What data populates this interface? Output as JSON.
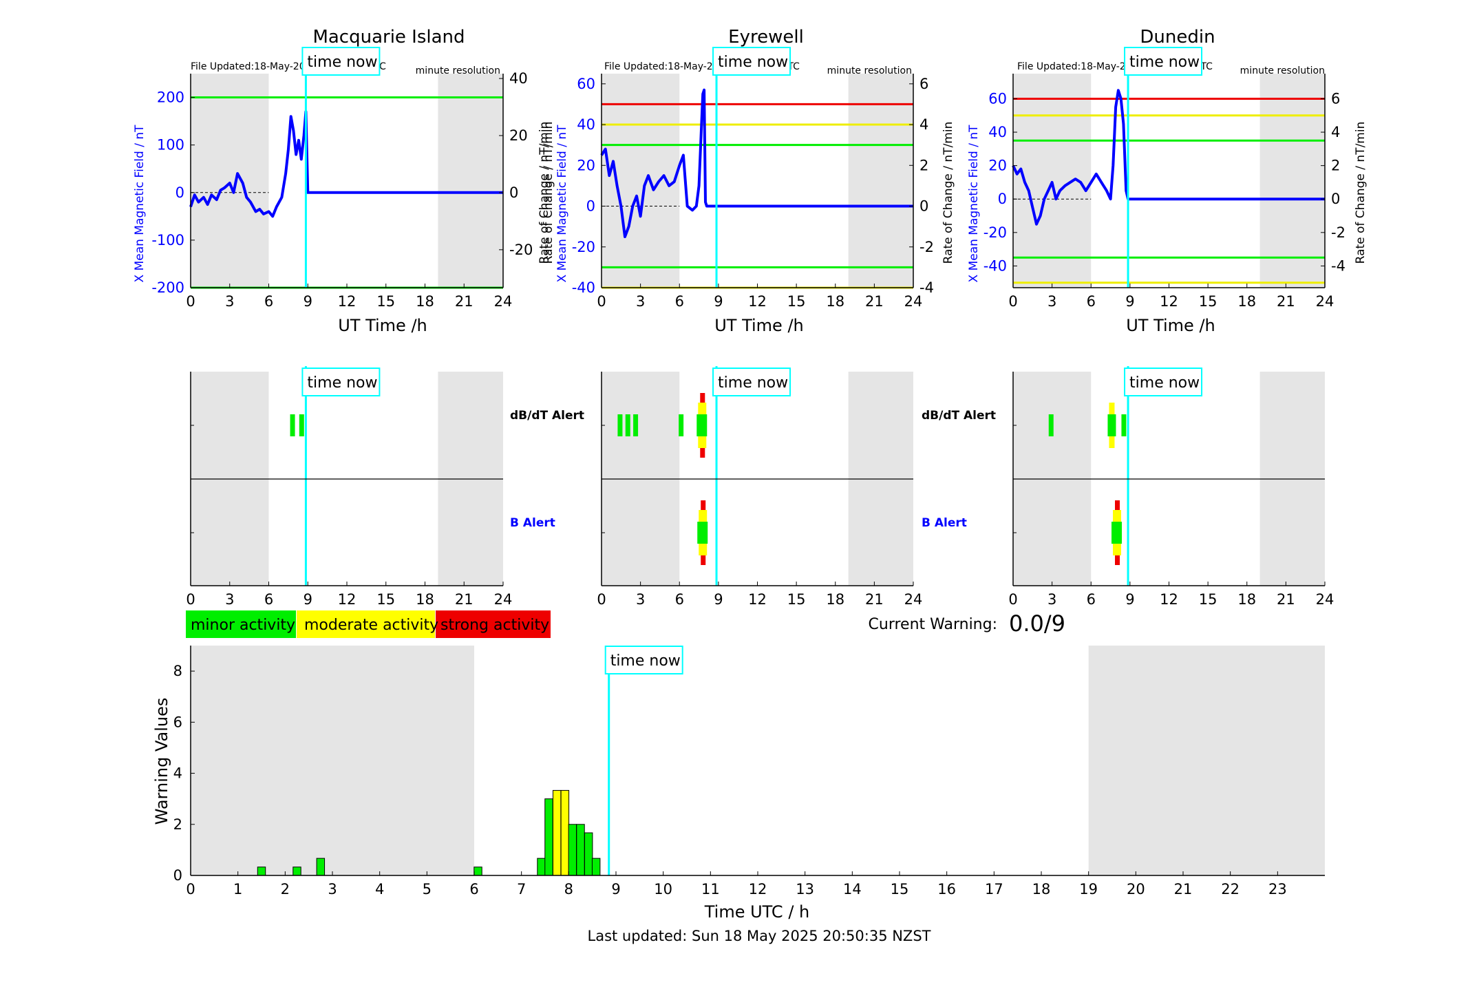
{
  "chart_data": [
    {
      "type": "line",
      "title": "Macquarie Island",
      "file_updated": "File Updated:18-May-2025 08:50:03 UTC",
      "resolution": "minute resolution",
      "xlabel": "UT Time /h",
      "ylabel_left": "X Mean Magnetic Field / nT",
      "ylabel_right": "Rate of Change / nT/min",
      "xlim": [
        0,
        24
      ],
      "ylim_left": [
        -200,
        250
      ],
      "ylim_right": [
        -33.3,
        41.7
      ],
      "xticks": [
        "0",
        "3",
        "6",
        "9",
        "12",
        "15",
        "18",
        "21",
        "24"
      ],
      "yticks_left": [
        "-200",
        "-100",
        "0",
        "100",
        "200"
      ],
      "yticks_right": [
        "-20",
        "0",
        "20",
        "40"
      ],
      "time_now": 8.85,
      "time_now_label": "time now",
      "shaded_hours": [
        [
          0,
          6
        ],
        [
          19,
          24
        ]
      ],
      "thresholds": [
        {
          "level": 200,
          "color": "#00ee00"
        },
        {
          "level": -200,
          "color": "#00ee00"
        }
      ],
      "series": [
        {
          "color": "#0000ff",
          "x": [
            0,
            0.3,
            0.6,
            1,
            1.3,
            1.6,
            2,
            2.3,
            2.6,
            3,
            3.3,
            3.6,
            4,
            4.3,
            4.6,
            5,
            5.3,
            5.6,
            6,
            6.3,
            6.6,
            7,
            7.3,
            7.5,
            7.7,
            7.9,
            8.1,
            8.3,
            8.5,
            8.7,
            8.85,
            9,
            12,
            15,
            18,
            21,
            24
          ],
          "y": [
            -30,
            -5,
            -20,
            -10,
            -25,
            -5,
            -15,
            5,
            10,
            20,
            0,
            40,
            20,
            -10,
            -20,
            -40,
            -35,
            -45,
            -40,
            -50,
            -30,
            -10,
            40,
            90,
            160,
            130,
            80,
            110,
            70,
            120,
            170,
            0,
            0,
            0,
            0,
            0,
            0
          ]
        }
      ]
    },
    {
      "type": "line",
      "title": "Eyrewell",
      "file_updated": "File Updated:18-May-2025 08:50:05 UTC",
      "resolution": "minute resolution",
      "xlabel": "UT Time /h",
      "ylabel_left": "X Mean Magnetic Field / nT",
      "ylabel_right": "Rate of Change / nT/min",
      "xlim": [
        0,
        24
      ],
      "ylim_left": [
        -40,
        65
      ],
      "ylim_right": [
        -4,
        6.5
      ],
      "xticks": [
        "0",
        "3",
        "6",
        "9",
        "12",
        "15",
        "18",
        "21",
        "24"
      ],
      "yticks_left": [
        "-40",
        "-20",
        "0",
        "20",
        "40",
        "60"
      ],
      "yticks_right": [
        "-4",
        "-2",
        "0",
        "2",
        "4",
        "6"
      ],
      "time_now": 8.85,
      "time_now_label": "time now",
      "shaded_hours": [
        [
          0,
          6
        ],
        [
          19,
          24
        ]
      ],
      "thresholds": [
        {
          "level": 50,
          "color": "#ee0000"
        },
        {
          "level": 40,
          "color": "#eeee00"
        },
        {
          "level": 30,
          "color": "#00ee00"
        },
        {
          "level": -30,
          "color": "#00ee00"
        },
        {
          "level": -40,
          "color": "#eeee00"
        }
      ],
      "series": [
        {
          "color": "#0000ff",
          "x": [
            0,
            0.3,
            0.6,
            0.9,
            1.2,
            1.5,
            1.8,
            2.1,
            2.4,
            2.7,
            3,
            3.3,
            3.6,
            4,
            4.4,
            4.8,
            5.2,
            5.6,
            6,
            6.3,
            6.6,
            7,
            7.3,
            7.5,
            7.7,
            7.8,
            7.9,
            8,
            8.1,
            12,
            15,
            18,
            21,
            24
          ],
          "y": [
            25,
            28,
            15,
            22,
            10,
            0,
            -15,
            -10,
            0,
            5,
            -5,
            10,
            15,
            8,
            12,
            15,
            10,
            12,
            20,
            25,
            0,
            -2,
            0,
            10,
            40,
            55,
            57,
            2,
            0,
            0,
            0,
            0,
            0,
            0
          ]
        }
      ]
    },
    {
      "type": "line",
      "title": "Dunedin",
      "file_updated": "File Updated:18-May-2025 08:49:02 UTC",
      "resolution": "minute resolution",
      "xlabel": "UT Time /h",
      "ylabel_left": "X Mean Magnetic Field / nT",
      "ylabel_right": "Rate of Change / nT/min",
      "xlim": [
        0,
        24
      ],
      "ylim_left": [
        -53,
        75
      ],
      "ylim_right": [
        -5.3,
        7.5
      ],
      "xticks": [
        "0",
        "3",
        "6",
        "9",
        "12",
        "15",
        "18",
        "21",
        "24"
      ],
      "yticks_left": [
        "-40",
        "-20",
        "0",
        "20",
        "40",
        "60"
      ],
      "yticks_right": [
        "-4",
        "-2",
        "0",
        "2",
        "4",
        "6"
      ],
      "time_now": 8.85,
      "time_now_label": "time now",
      "shaded_hours": [
        [
          0,
          6
        ],
        [
          19,
          24
        ]
      ],
      "thresholds": [
        {
          "level": 60,
          "color": "#ee0000"
        },
        {
          "level": 50,
          "color": "#eeee00"
        },
        {
          "level": 35,
          "color": "#00ee00"
        },
        {
          "level": -35,
          "color": "#00ee00"
        },
        {
          "level": -50,
          "color": "#eeee00"
        }
      ],
      "series": [
        {
          "color": "#0000ff",
          "x": [
            0,
            0.3,
            0.6,
            0.9,
            1.2,
            1.5,
            1.8,
            2.1,
            2.4,
            2.7,
            3,
            3.3,
            3.6,
            4,
            4.4,
            4.8,
            5.2,
            5.6,
            6,
            6.4,
            6.8,
            7.2,
            7.5,
            7.7,
            7.9,
            8.1,
            8.3,
            8.5,
            8.7,
            8.85,
            9,
            12,
            15,
            18,
            21,
            24
          ],
          "y": [
            20,
            15,
            18,
            10,
            5,
            -5,
            -15,
            -10,
            0,
            5,
            10,
            0,
            5,
            8,
            10,
            12,
            10,
            5,
            10,
            15,
            10,
            5,
            0,
            20,
            55,
            65,
            60,
            45,
            5,
            0,
            0,
            0,
            0,
            0,
            0,
            0
          ]
        }
      ]
    },
    {
      "type": "heatmap",
      "title": "Macquarie Island",
      "xlim": [
        0,
        24
      ],
      "xticks": [
        "0",
        "3",
        "6",
        "9",
        "12",
        "15",
        "18",
        "21",
        "24"
      ],
      "rows": [
        "dB/dT Alert",
        "B Alert"
      ],
      "time_now": 8.85,
      "time_now_label": "time now",
      "shaded_hours": [
        [
          0,
          6
        ],
        [
          19,
          24
        ]
      ],
      "events": [
        {
          "row": "dB/dT Alert",
          "x": 7.8,
          "level": "minor"
        },
        {
          "row": "dB/dT Alert",
          "x": 8.5,
          "level": "minor"
        }
      ]
    },
    {
      "type": "heatmap",
      "title": "Eyrewell",
      "xlim": [
        0,
        24
      ],
      "xticks": [
        "0",
        "3",
        "6",
        "9",
        "12",
        "15",
        "18",
        "21",
        "24"
      ],
      "rows": [
        "dB/dT Alert",
        "B Alert"
      ],
      "time_now": 8.85,
      "time_now_label": "time now",
      "shaded_hours": [
        [
          0,
          6
        ],
        [
          19,
          24
        ]
      ],
      "events": [
        {
          "row": "dB/dT Alert",
          "x": 1.4,
          "level": "minor"
        },
        {
          "row": "dB/dT Alert",
          "x": 2.0,
          "level": "minor"
        },
        {
          "row": "dB/dT Alert",
          "x": 2.6,
          "level": "minor"
        },
        {
          "row": "dB/dT Alert",
          "x": 6.1,
          "level": "minor"
        },
        {
          "row": "dB/dT Alert",
          "x": 7.75,
          "level": "strong"
        },
        {
          "row": "B Alert",
          "x": 7.8,
          "level": "strong"
        }
      ]
    },
    {
      "type": "heatmap",
      "title": "Dunedin",
      "xlim": [
        0,
        24
      ],
      "xticks": [
        "0",
        "3",
        "6",
        "9",
        "12",
        "15",
        "18",
        "21",
        "24"
      ],
      "rows": [
        "dB/dT Alert",
        "B Alert"
      ],
      "time_now": 8.85,
      "time_now_label": "time now",
      "shaded_hours": [
        [
          0,
          6
        ],
        [
          19,
          24
        ]
      ],
      "events": [
        {
          "row": "dB/dT Alert",
          "x": 2.9,
          "level": "minor"
        },
        {
          "row": "dB/dT Alert",
          "x": 7.6,
          "level": "moderate"
        },
        {
          "row": "dB/dT Alert",
          "x": 8.5,
          "level": "minor"
        },
        {
          "row": "B Alert",
          "x": 8.0,
          "level": "strong"
        }
      ]
    },
    {
      "type": "bar",
      "xlabel": "Time UTC / h",
      "ylabel": "Warning Values",
      "xlim": [
        0,
        24
      ],
      "ylim": [
        0,
        9
      ],
      "xticks": [
        "0",
        "1",
        "2",
        "3",
        "4",
        "5",
        "6",
        "7",
        "8",
        "9",
        "10",
        "11",
        "12",
        "13",
        "14",
        "15",
        "16",
        "17",
        "18",
        "19",
        "20",
        "21",
        "22",
        "23"
      ],
      "yticks": [
        "0",
        "2",
        "4",
        "6",
        "8"
      ],
      "time_now": 8.85,
      "time_now_label": "time now",
      "shaded_hours": [
        [
          0,
          6
        ],
        [
          19,
          24
        ]
      ],
      "bars": [
        {
          "x": 1.5,
          "value": 0.33,
          "level": "minor"
        },
        {
          "x": 2.25,
          "value": 0.33,
          "level": "minor"
        },
        {
          "x": 2.75,
          "value": 0.67,
          "level": "minor"
        },
        {
          "x": 6.08,
          "value": 0.33,
          "level": "minor"
        },
        {
          "x": 7.42,
          "value": 0.67,
          "level": "minor"
        },
        {
          "x": 7.58,
          "value": 3.0,
          "level": "minor"
        },
        {
          "x": 7.75,
          "value": 3.33,
          "level": "moderate"
        },
        {
          "x": 7.92,
          "value": 3.33,
          "level": "moderate"
        },
        {
          "x": 8.08,
          "value": 2.0,
          "level": "minor"
        },
        {
          "x": 8.25,
          "value": 2.0,
          "level": "minor"
        },
        {
          "x": 8.42,
          "value": 1.67,
          "level": "minor"
        },
        {
          "x": 8.58,
          "value": 0.67,
          "level": "minor"
        }
      ]
    }
  ],
  "legend": [
    {
      "label": "minor activity",
      "color": "#00ee00"
    },
    {
      "label": "moderate activity",
      "color": "#ffff00"
    },
    {
      "label": "strong activity",
      "color": "#ee0000"
    }
  ],
  "colors": {
    "minor": "#00ee00",
    "moderate": "#ffff00",
    "strong": "#ee0000",
    "time_now": "#00ffff",
    "shade": "#e5e5e5",
    "series": "#0000ff"
  },
  "current_warning": {
    "label": "Current Warning:",
    "value": "0.0/9"
  },
  "footer": {
    "last_updated": "Last updated: Sun 18 May 2025 20:50:35 NZST"
  }
}
